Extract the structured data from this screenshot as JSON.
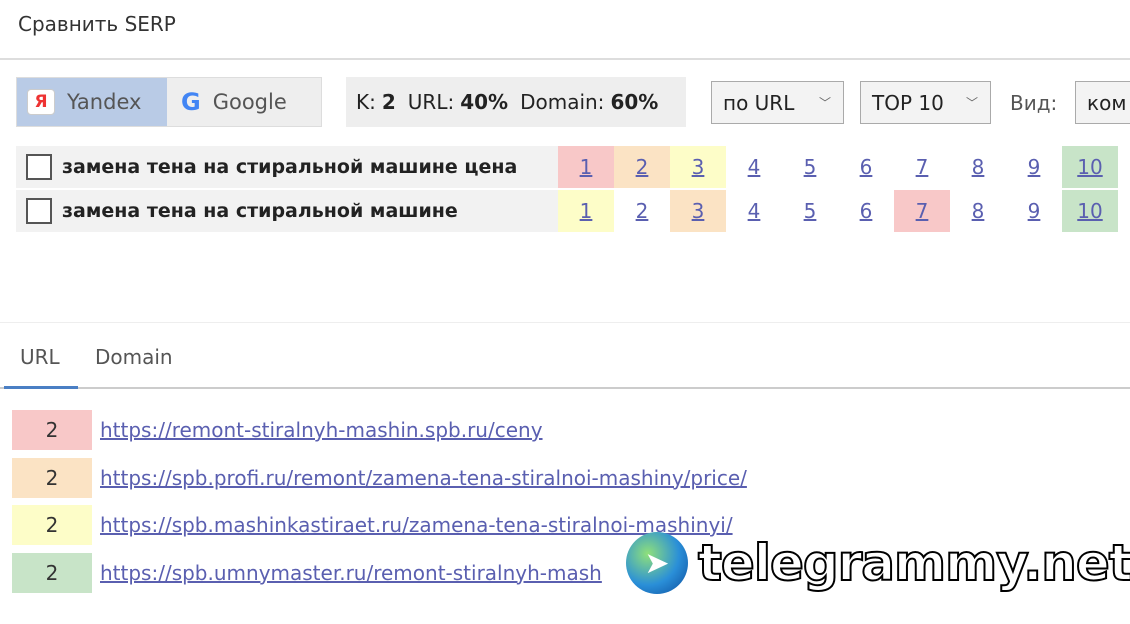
{
  "window": {
    "title": "Сравнить SERP"
  },
  "toolbar": {
    "engines": [
      {
        "label": "Yandex",
        "icon": "yandex-icon",
        "active": true
      },
      {
        "label": "Google",
        "icon": "google-icon",
        "active": false
      }
    ],
    "stats": {
      "k_label": "K:",
      "k_value": "2",
      "url_label": "URL:",
      "url_value": "40%",
      "domain_label": "Domain:",
      "domain_value": "60%"
    },
    "mode_select": "по URL",
    "top_select": "TOP 10",
    "view_label": "Вид:",
    "view_select": "ком"
  },
  "colors": {
    "red": "#f8c8c8",
    "orange": "#fbe3c4",
    "yellow": "#fdfdc8",
    "green": "#c8e4c8"
  },
  "queries": [
    {
      "text": "замена тена на стиральной машине цена",
      "checked": false,
      "positions": [
        {
          "n": "1",
          "c": "red"
        },
        {
          "n": "2",
          "c": "orange"
        },
        {
          "n": "3",
          "c": "yellow"
        },
        {
          "n": "4"
        },
        {
          "n": "5"
        },
        {
          "n": "6"
        },
        {
          "n": "7"
        },
        {
          "n": "8"
        },
        {
          "n": "9"
        },
        {
          "n": "10",
          "c": "green"
        }
      ]
    },
    {
      "text": "замена тена на стиральной машине",
      "checked": false,
      "positions": [
        {
          "n": "1",
          "c": "yellow"
        },
        {
          "n": "2"
        },
        {
          "n": "3",
          "c": "orange"
        },
        {
          "n": "4"
        },
        {
          "n": "5"
        },
        {
          "n": "6"
        },
        {
          "n": "7",
          "c": "red"
        },
        {
          "n": "8"
        },
        {
          "n": "9"
        },
        {
          "n": "10",
          "c": "green"
        }
      ]
    }
  ],
  "tabs": [
    {
      "label": "URL",
      "active": true
    },
    {
      "label": "Domain",
      "active": false
    }
  ],
  "results": [
    {
      "count": "2",
      "color": "red",
      "url": "https://remont-stiralnyh-mashin.spb.ru/ceny"
    },
    {
      "count": "2",
      "color": "orange",
      "url": "https://spb.profi.ru/remont/zamena-tena-stiralnoi-mashiny/price/"
    },
    {
      "count": "2",
      "color": "yellow",
      "url": "https://spb.mashinkastiraet.ru/zamena-tena-stiralnoi-mashinyi/"
    },
    {
      "count": "2",
      "color": "green",
      "url": "https://spb.umnymaster.ru/remont-stiralnyh-mash"
    }
  ],
  "watermark": {
    "text": "telegrammy.net"
  }
}
